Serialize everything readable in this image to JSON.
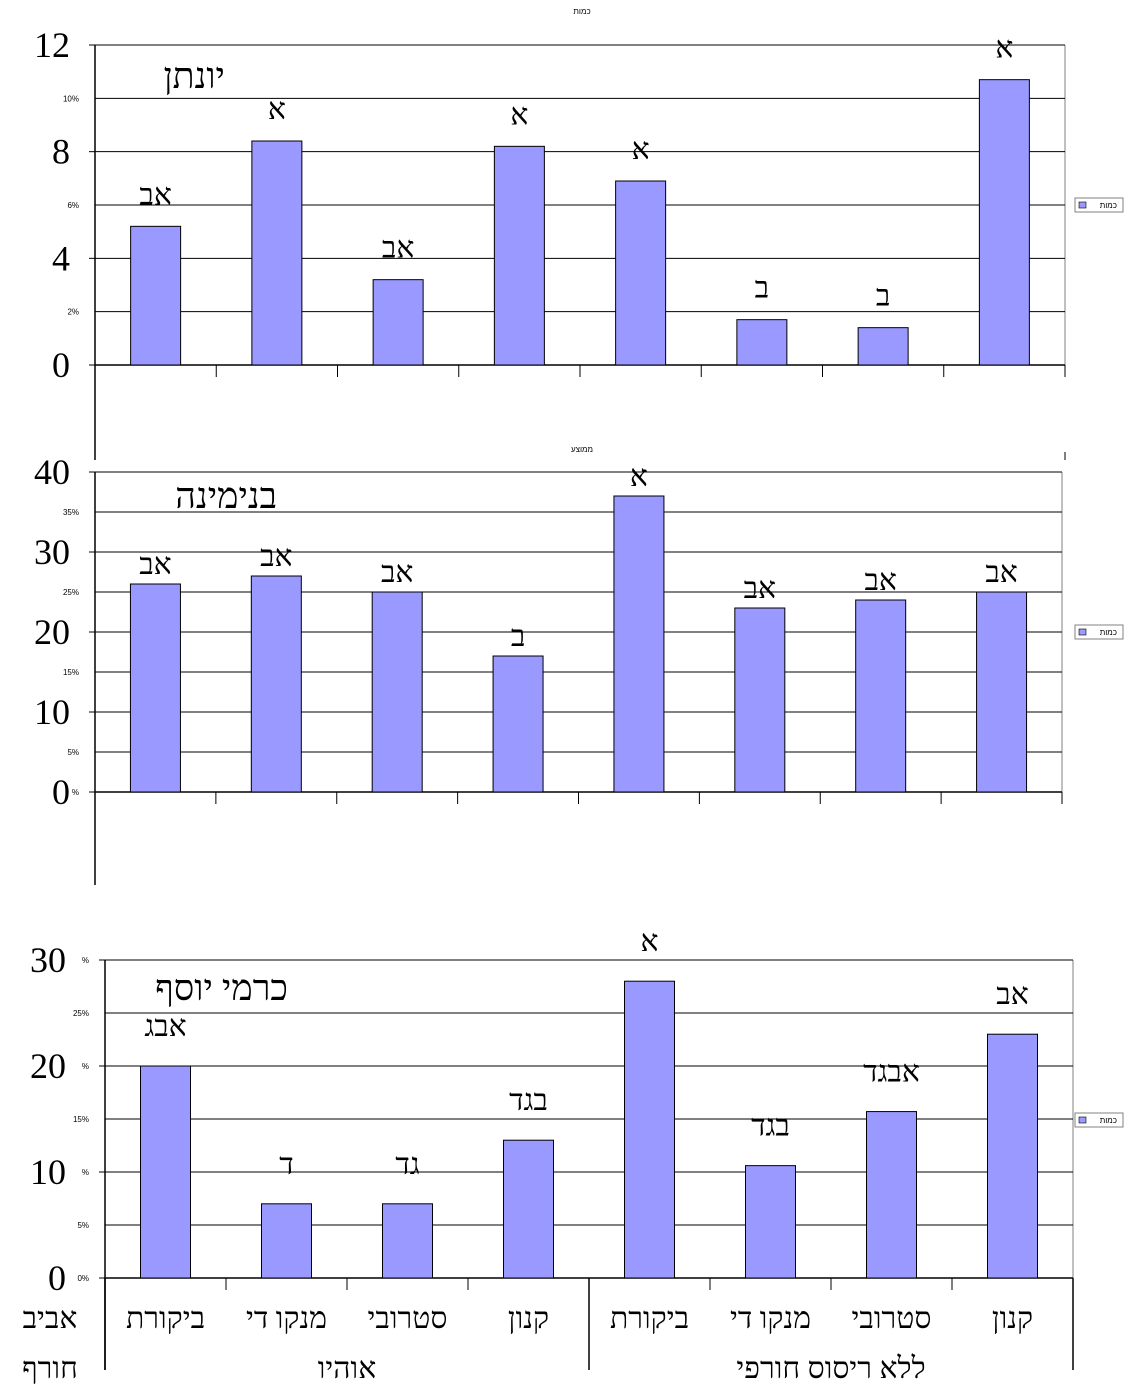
{
  "header_text": "כמות",
  "legend_text": "כמות",
  "faint_label": "ממוצע",
  "colors": {
    "bar": "#9999ff",
    "stroke": "#000000",
    "legend_border": "#808080"
  },
  "chart_data": [
    {
      "type": "bar",
      "title": "יונתן",
      "ylim": [
        0,
        12
      ],
      "ticks": [
        0,
        4,
        8,
        12
      ],
      "minor_ticks": [
        "10%",
        "6%",
        "2%"
      ],
      "minor_values": [
        10,
        6,
        2
      ],
      "values": [
        5.2,
        8.4,
        3.2,
        8.2,
        6.9,
        1.7,
        1.4,
        10.7
      ],
      "letters": [
        "אב",
        "א",
        "אב",
        "א",
        "א",
        "ב",
        "ב",
        "א"
      ]
    },
    {
      "type": "bar",
      "title": "בנימינה",
      "ylim": [
        0,
        40
      ],
      "ticks": [
        0,
        10,
        20,
        30,
        40
      ],
      "minor_ticks": [
        "35%",
        "25%",
        "15%",
        "5%",
        "%"
      ],
      "minor_values": [
        35,
        25,
        15,
        5,
        0
      ],
      "values": [
        26,
        27,
        25,
        17,
        37,
        23,
        24,
        25
      ],
      "letters": [
        "אב",
        "אב",
        "אב",
        "ב",
        "א",
        "אב",
        "אב",
        "אב"
      ]
    },
    {
      "type": "bar",
      "title": "כרמי יוסף",
      "ylim": [
        0,
        30
      ],
      "ticks": [
        0,
        10,
        20,
        30
      ],
      "minor_ticks": [
        "%",
        "25%",
        "%",
        "15%",
        "%",
        "5%",
        "0%"
      ],
      "minor_values": [
        30,
        25,
        20,
        15,
        10,
        5,
        0
      ],
      "values": [
        20,
        7,
        7,
        13,
        28,
        10.6,
        15.7,
        23
      ],
      "letters": [
        "אבג",
        "ד",
        "גד",
        "בגד",
        "א",
        "בגד",
        "אבגד",
        "אב"
      ],
      "categories": [
        "ביקורת",
        "מנקו די",
        "סטרובי",
        "קנון",
        "ביקורת",
        "מנקו די",
        "סטרובי",
        "קנון"
      ],
      "left_label_lines": [
        "אביב",
        "חורף"
      ],
      "groups": [
        {
          "name": "אוהיו",
          "from": 0,
          "to": 3
        },
        {
          "name": "ללא ריסוס חורפי",
          "from": 4,
          "to": 7
        }
      ]
    }
  ]
}
